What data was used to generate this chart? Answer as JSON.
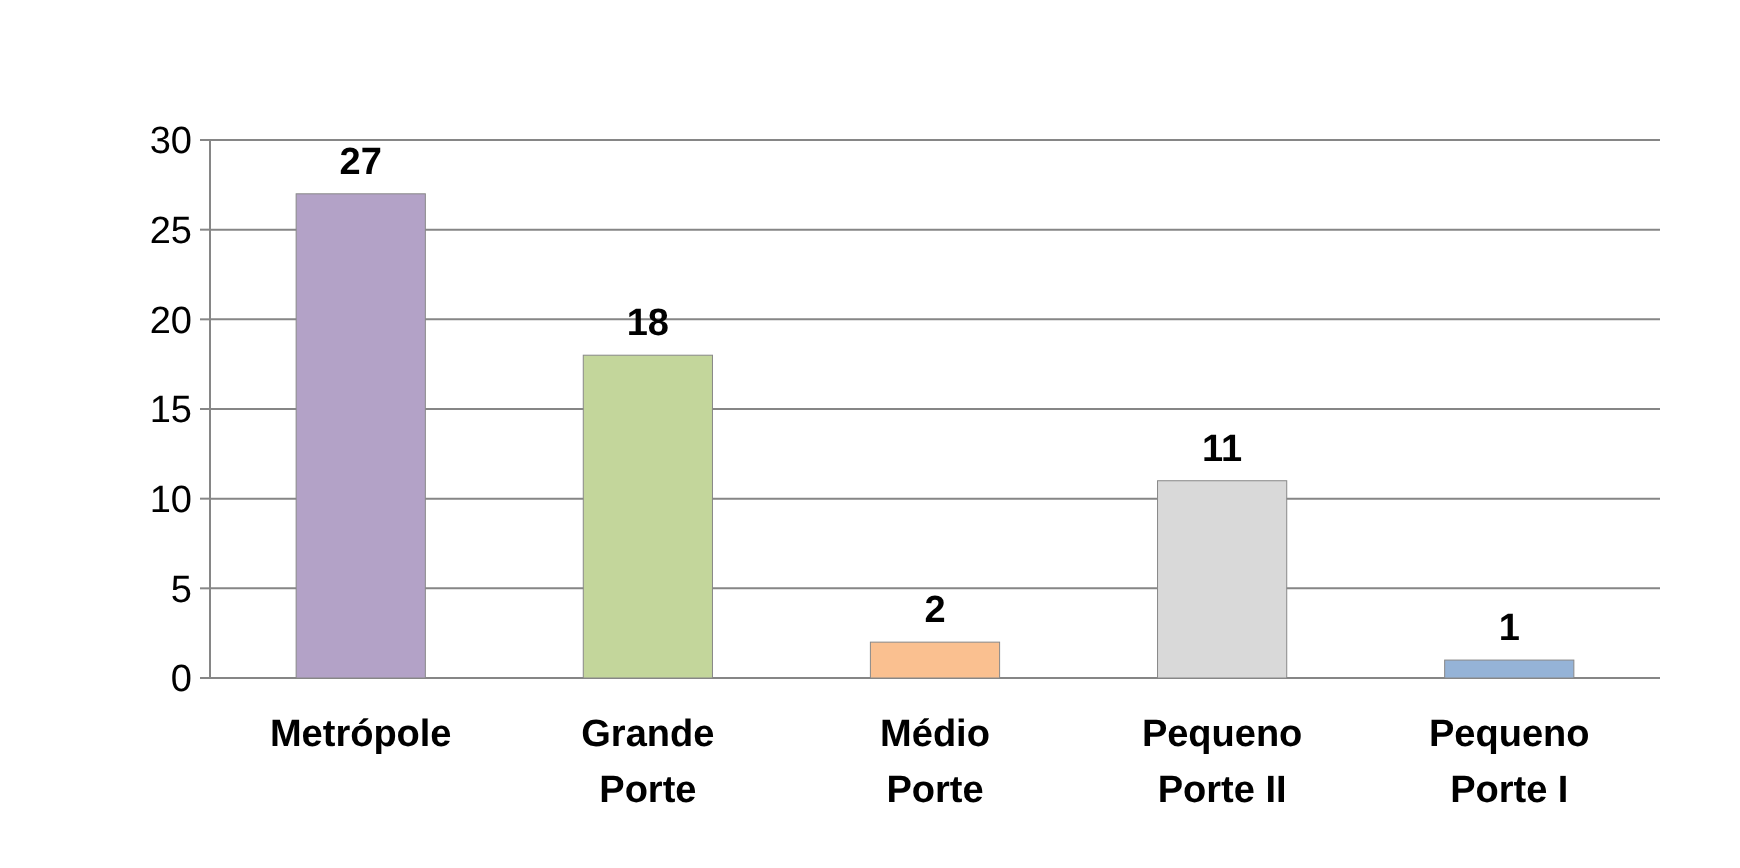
{
  "chart_data": {
    "type": "bar",
    "categories": [
      "Metrópole",
      "Grande Porte",
      "Médio Porte",
      "Pequeno Porte II",
      "Pequeno Porte I"
    ],
    "values": [
      27,
      18,
      2,
      11,
      1
    ],
    "colors": [
      "#b3a2c7",
      "#c3d69b",
      "#fac090",
      "#d9d9d9",
      "#95b3d7"
    ],
    "ylim": [
      0,
      30
    ],
    "yticks": [
      0,
      5,
      10,
      15,
      20,
      25,
      30
    ],
    "grid": "y",
    "data_labels": true
  }
}
